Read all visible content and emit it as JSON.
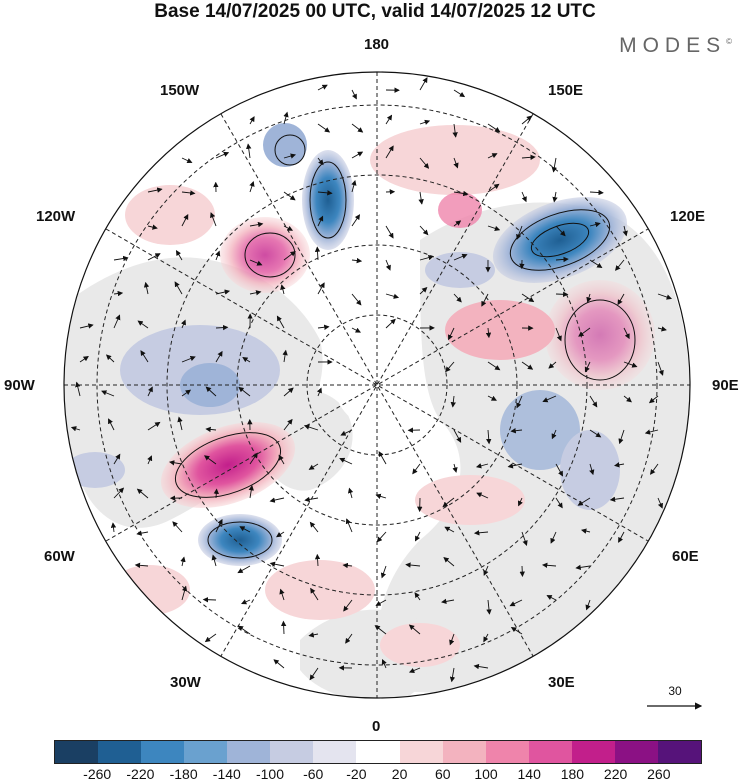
{
  "title": "Base 14/07/2025 00 UTC, valid 14/07/2025 12 UTC",
  "brand": "MODES",
  "brand_mark": "©",
  "longitude_labels": {
    "top": "180",
    "bottom": "0",
    "left": "90W",
    "right": "90E",
    "upper_left_outer": "150W",
    "upper_left_inner": "120W",
    "lower_left_inner": "60W",
    "lower_left_outer": "30W",
    "upper_right_outer": "150E",
    "upper_right_inner": "120E",
    "lower_right_inner": "60E",
    "lower_right_outer": "30E"
  },
  "vector_scale_label": "30",
  "colorbar": {
    "colors": [
      "#1a3f63",
      "#1f5f93",
      "#3d86bf",
      "#6aa1cf",
      "#9fb4d8",
      "#c6cce2",
      "#e4e4ef",
      "#ffffff",
      "#f7d6d8",
      "#f3b3bf",
      "#ef84ab",
      "#e0559f",
      "#c21f8b",
      "#8b1184",
      "#56137a"
    ],
    "labels": [
      "-260",
      "-220",
      "-180",
      "-140",
      "-100",
      "-60",
      "-20",
      "20",
      "60",
      "100",
      "140",
      "180",
      "220",
      "260"
    ]
  },
  "map_colors": {
    "land": "#e9e9e9",
    "ocean": "#ffffff",
    "grid": "#222222",
    "positive_strong": "#e0559f",
    "positive_weak": "#f3b3bf",
    "negative_strong": "#1f5f93",
    "negative_weak": "#9fb4d8"
  }
}
